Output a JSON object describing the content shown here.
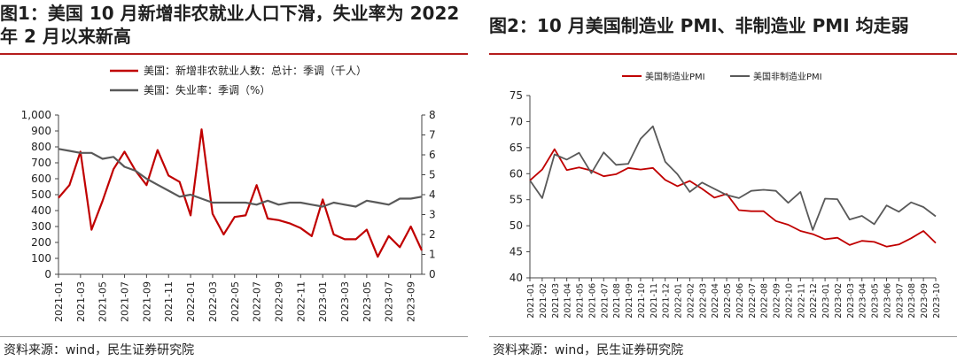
{
  "panel1": {
    "title": "图1：美国  10  月新增非农就业人口下滑，失业率为 2022 年 2 月以来新高",
    "source": "资料来源：wind，民生证券研究院"
  },
  "panel2": {
    "title": "图2：10 月美国制造业 PMI、非制造业 PMI 均走弱",
    "source": "资料来源：wind，民生证券研究院"
  },
  "chart_data": [
    {
      "type": "line",
      "title": "",
      "legend_position": "top-center",
      "y_left": {
        "min": 0,
        "max": 1000,
        "ticks": [
          "0",
          "100",
          "200",
          "300",
          "400",
          "500",
          "600",
          "700",
          "800",
          "900",
          "1,000"
        ]
      },
      "y_right": {
        "min": 0,
        "max": 8,
        "ticks": [
          "0",
          "1",
          "2",
          "3",
          "4",
          "5",
          "6",
          "7",
          "8"
        ]
      },
      "x_tick_labels": [
        "2021-01",
        "2021-03",
        "2021-05",
        "2021-07",
        "2021-09",
        "2021-11",
        "2022-01",
        "2022-03",
        "2022-05",
        "2022-07",
        "2022-09",
        "2022-11",
        "2023-01",
        "2023-03",
        "2023-05",
        "2023-07",
        "2023-09"
      ],
      "x_tick_indices": [
        0,
        2,
        4,
        6,
        8,
        10,
        12,
        14,
        16,
        18,
        20,
        22,
        24,
        26,
        28,
        30,
        32
      ],
      "series": [
        {
          "name": "美国：新增非农就业人数：总计：季调（千人）",
          "axis": "left",
          "color": "#c00000",
          "values": [
            480,
            560,
            770,
            280,
            460,
            660,
            770,
            650,
            560,
            780,
            620,
            580,
            370,
            910,
            380,
            250,
            360,
            370,
            560,
            350,
            340,
            320,
            290,
            240,
            470,
            250,
            220,
            220,
            280,
            110,
            240,
            170,
            300,
            150
          ]
        },
        {
          "name": "美国：失业率：季调（%）",
          "axis": "right",
          "color": "#595959",
          "values": [
            6.3,
            6.2,
            6.1,
            6.1,
            5.8,
            5.9,
            5.4,
            5.2,
            4.8,
            4.5,
            4.2,
            3.9,
            4.0,
            3.8,
            3.6,
            3.6,
            3.6,
            3.6,
            3.5,
            3.7,
            3.5,
            3.6,
            3.6,
            3.5,
            3.4,
            3.6,
            3.5,
            3.4,
            3.7,
            3.6,
            3.5,
            3.8,
            3.8,
            3.9
          ]
        }
      ]
    },
    {
      "type": "line",
      "title": "",
      "legend_position": "top-center",
      "y": {
        "min": 40,
        "max": 75,
        "ticks": [
          "40",
          "45",
          "50",
          "55",
          "60",
          "65",
          "70",
          "75"
        ]
      },
      "x_tick_labels": [
        "2021-01",
        "2021-02",
        "2021-03",
        "2021-04",
        "2021-05",
        "2021-06",
        "2021-07",
        "2021-08",
        "2021-09",
        "2021-10",
        "2021-11",
        "2021-12",
        "2022-01",
        "2022-02",
        "2022-03",
        "2022-04",
        "2022-05",
        "2022-06",
        "2022-07",
        "2022-08",
        "2022-09",
        "2022-10",
        "2022-11",
        "2022-12",
        "2023-01",
        "2023-02",
        "2023-03",
        "2023-04",
        "2023-05",
        "2023-06",
        "2023-07",
        "2023-08",
        "2023-09",
        "2023-10"
      ],
      "series": [
        {
          "name": "美国制造业PMI",
          "color": "#c00000",
          "values": [
            58.7,
            60.8,
            64.7,
            60.7,
            61.2,
            60.6,
            59.5,
            59.9,
            61.1,
            60.8,
            61.1,
            58.8,
            57.6,
            58.6,
            57.1,
            55.4,
            56.1,
            53.0,
            52.8,
            52.8,
            50.9,
            50.2,
            49.0,
            48.4,
            47.4,
            47.7,
            46.3,
            47.1,
            46.9,
            46.0,
            46.4,
            47.6,
            49.0,
            46.7
          ]
        },
        {
          "name": "美国非制造业PMI",
          "color": "#595959",
          "values": [
            58.7,
            55.3,
            63.7,
            62.7,
            64.0,
            60.1,
            64.1,
            61.7,
            61.9,
            66.7,
            69.1,
            62.3,
            59.9,
            56.5,
            58.3,
            57.1,
            55.9,
            55.3,
            56.7,
            56.9,
            56.7,
            54.4,
            56.5,
            49.2,
            55.2,
            55.1,
            51.2,
            51.9,
            50.3,
            53.9,
            52.7,
            54.5,
            53.6,
            51.8
          ]
        }
      ]
    }
  ]
}
